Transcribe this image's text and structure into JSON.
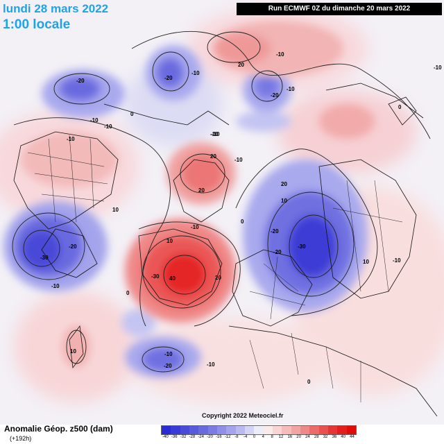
{
  "header": {
    "date": "lundi 28 mars 2022",
    "time": "1:00 locale",
    "run": "Run ECMWF 0Z du dimanche 20 mars 2022"
  },
  "footer": {
    "product": "Anomalie Géop. z500 (dam)",
    "lead": "(+192h)",
    "copyright": "Copyright 2022 Meteociel.fr"
  },
  "legend": {
    "labels": [
      "-40",
      "-36",
      "-32",
      "-28",
      "-24",
      "-20",
      "-16",
      "-12",
      "-8",
      "-4",
      "0",
      "4",
      "8",
      "12",
      "16",
      "20",
      "24",
      "28",
      "32",
      "36",
      "40",
      "44"
    ],
    "colors": [
      "#2b2bd6",
      "#3a3ad8",
      "#4a4ad9",
      "#5959db",
      "#6a6adf",
      "#7b7be3",
      "#8f8fe8",
      "#a4a4ec",
      "#babaf1",
      "#d4d4f6",
      "#ececfb",
      "#fbeaea",
      "#f8d4d4",
      "#f5bcbc",
      "#f2a3a3",
      "#ef8888",
      "#ec6c6c",
      "#e95050",
      "#e63535",
      "#e31e1e",
      "#e00b0b"
    ]
  },
  "contour_labels": [
    "-20",
    "-20",
    "-20",
    "-10",
    "-10",
    "-10",
    "0",
    "0",
    "-10",
    "-10",
    "20",
    "20",
    "-10",
    "-10",
    "-10",
    "20",
    "-10",
    "10",
    "10",
    "-20",
    "-30",
    "0",
    "10",
    "-20",
    "20",
    "-30",
    "-10",
    "-20",
    "-30",
    "40",
    "20",
    "0",
    "-10",
    "-10",
    "10",
    "-10",
    "-20",
    "-10",
    "10",
    "-10",
    "0"
  ]
}
